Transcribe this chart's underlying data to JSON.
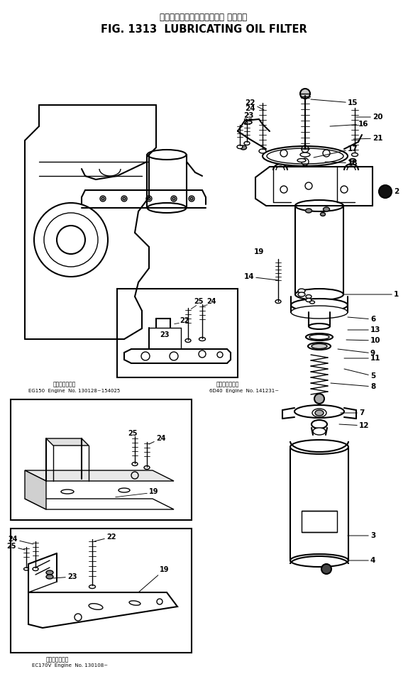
{
  "title_japanese": "ルーブリケーティングオイル フィルタ",
  "title_english": "FIG. 1313  LUBRICATING OIL FILTER",
  "bg_color": "#ffffff",
  "fig_width": 5.75,
  "fig_height": 9.74,
  "dpi": 100,
  "line_color": "#000000",
  "text_color": "#000000",
  "caption_eg150_line1": "適　用　号　等",
  "caption_eg150_line2": "EG150  Engine  No. 130128~154025",
  "caption_6d40_line1": "適　用　号　等",
  "caption_6d40_line2": "6D40  Engine  No. 141231~",
  "caption_ec170v_line1": "適　用　号　等",
  "caption_ec170v_line2": "EC170V  Engine  No. 130108~"
}
